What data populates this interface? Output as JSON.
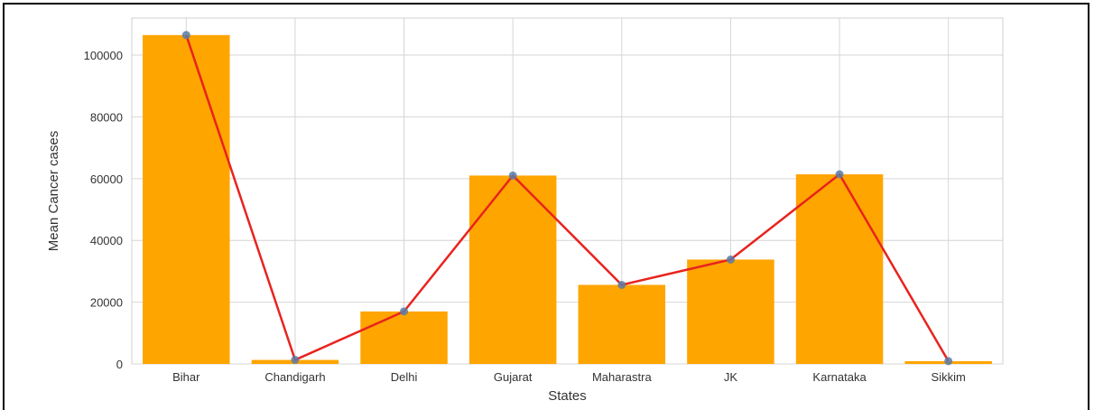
{
  "chart_data": {
    "type": "bar",
    "title": "",
    "xlabel": "States",
    "ylabel": "Mean Cancer cases",
    "categories": [
      "Bihar",
      "Chandigarh",
      "Delhi",
      "Gujarat",
      "Maharastra",
      "JK",
      "Karnataka",
      "Sikkim"
    ],
    "series": [
      {
        "type": "bar",
        "values": [
          106500,
          1300,
          17000,
          61000,
          25600,
          33800,
          61400,
          900
        ],
        "color": "#FFA500"
      },
      {
        "type": "line",
        "values": [
          106500,
          1300,
          17000,
          61000,
          25600,
          33800,
          61400,
          900
        ],
        "color": "#E8231E",
        "marker_color": "#5B7BA6"
      }
    ],
    "yticks": [
      "0",
      "20000",
      "40000",
      "60000",
      "80000",
      "100000"
    ],
    "ylim": [
      0,
      112000
    ],
    "grid": true
  }
}
